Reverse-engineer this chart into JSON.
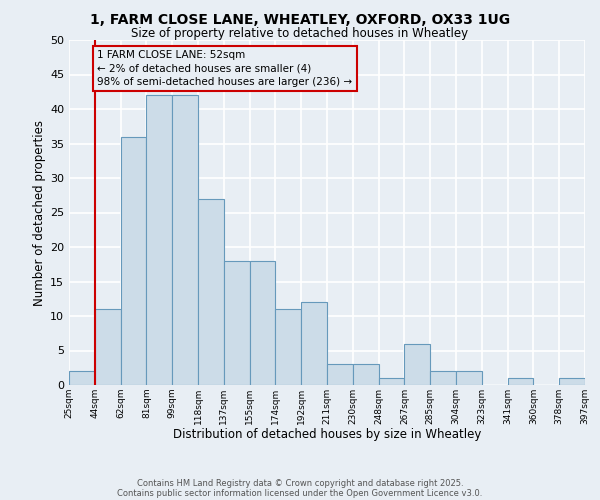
{
  "title1": "1, FARM CLOSE LANE, WHEATLEY, OXFORD, OX33 1UG",
  "title2": "Size of property relative to detached houses in Wheatley",
  "xlabel": "Distribution of detached houses by size in Wheatley",
  "ylabel": "Number of detached properties",
  "bin_labels": [
    "25sqm",
    "44sqm",
    "62sqm",
    "81sqm",
    "99sqm",
    "118sqm",
    "137sqm",
    "155sqm",
    "174sqm",
    "192sqm",
    "211sqm",
    "230sqm",
    "248sqm",
    "267sqm",
    "285sqm",
    "304sqm",
    "323sqm",
    "341sqm",
    "360sqm",
    "378sqm",
    "397sqm"
  ],
  "bar_values": [
    2,
    11,
    36,
    42,
    42,
    27,
    18,
    18,
    11,
    12,
    3,
    3,
    1,
    6,
    2,
    2,
    0,
    1,
    0,
    1
  ],
  "bar_color": "#ccdce8",
  "bar_edge_color": "#6699bb",
  "ylim": [
    0,
    50
  ],
  "yticks": [
    0,
    5,
    10,
    15,
    20,
    25,
    30,
    35,
    40,
    45,
    50
  ],
  "marker_bin_index": 1,
  "marker_color": "#cc0000",
  "annotation_line1": "1 FARM CLOSE LANE: 52sqm",
  "annotation_line2": "← 2% of detached houses are smaller (4)",
  "annotation_line3": "98% of semi-detached houses are larger (236) →",
  "annotation_box_edge": "#cc0000",
  "footer1": "Contains HM Land Registry data © Crown copyright and database right 2025.",
  "footer2": "Contains public sector information licensed under the Open Government Licence v3.0.",
  "background_color": "#e8eef4",
  "grid_color": "#ffffff"
}
